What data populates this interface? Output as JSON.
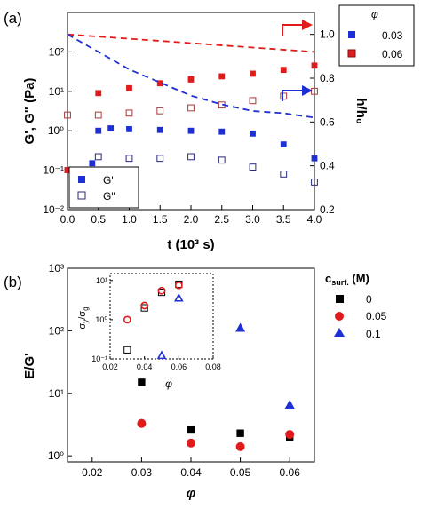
{
  "figure": {
    "panel_a_label": "(a)",
    "panel_b_label": "(b)"
  },
  "chart_data": [
    {
      "panel": "(a)",
      "type": "scatter",
      "xlabel": "t (10³ s)",
      "ylabel": "G', G\" (Pa)",
      "y2label": "h/h₀",
      "xlim": [
        0.0,
        4.0
      ],
      "ylim": [
        0.01,
        1000
      ],
      "yscale": "log",
      "y2lim": [
        0.2,
        1.1
      ],
      "xticks": [
        "0.0",
        "0.5",
        "1.0",
        "1.5",
        "2.0",
        "2.5",
        "3.0",
        "3.5",
        "4.0"
      ],
      "yticks": [
        "10⁻²",
        "10⁻¹",
        "10⁰",
        "10¹",
        "10²"
      ],
      "y2ticks": [
        "0.2",
        "0.4",
        "0.6",
        "0.8",
        "1.0"
      ],
      "legend_phi": {
        "title": "φ",
        "position": "top-right",
        "entries": [
          {
            "label": "0.03",
            "color": "#1f2fd6"
          },
          {
            "label": "0.06",
            "color": "#e01b1b"
          }
        ]
      },
      "legend_moduli": {
        "position": "bottom-left",
        "entries": [
          {
            "label": "G'",
            "marker": "filled-square"
          },
          {
            "label": "G\"",
            "marker": "open-square"
          }
        ]
      },
      "series": [
        {
          "color": "#1f2fd6",
          "marker": "filled-square",
          "x": [
            0.0,
            0.4,
            0.5,
            0.7,
            1.0,
            1.5,
            2.0,
            2.5,
            3.0,
            3.5,
            4.0
          ],
          "y": [
            0.1,
            0.15,
            1.0,
            1.15,
            1.1,
            1.05,
            1.0,
            0.95,
            0.85,
            0.45,
            0.2
          ]
        },
        {
          "color": "#1f2fd6",
          "marker": "open-square",
          "x": [
            0.5,
            1.0,
            1.5,
            2.0,
            2.5,
            3.0,
            3.5,
            4.0
          ],
          "y": [
            0.22,
            0.2,
            0.2,
            0.22,
            0.18,
            0.12,
            0.08,
            0.05
          ]
        },
        {
          "color": "#e01b1b",
          "marker": "filled-square",
          "x": [
            0.0,
            0.5,
            1.0,
            1.5,
            2.0,
            2.5,
            3.0,
            3.5,
            4.0
          ],
          "y": [
            0.1,
            9.0,
            12.0,
            16.0,
            20.0,
            24.0,
            28.0,
            35.0,
            45.0
          ]
        },
        {
          "color": "#e01b1b",
          "marker": "open-square",
          "x": [
            0.0,
            0.5,
            1.0,
            1.5,
            2.0,
            2.5,
            3.0,
            3.5,
            4.0
          ],
          "y": [
            2.5,
            2.5,
            2.8,
            3.2,
            3.8,
            4.5,
            5.8,
            7.5,
            10.0
          ]
        },
        {
          "color": "#e01b1b",
          "style": "dashed",
          "axis": "right",
          "x": [
            0.0,
            1.0,
            2.0,
            3.0,
            4.0
          ],
          "y": [
            1.0,
            0.98,
            0.96,
            0.94,
            0.92
          ]
        },
        {
          "color": "#1f2fd6",
          "style": "dashed",
          "axis": "right",
          "x": [
            0.0,
            0.5,
            1.0,
            1.5,
            2.0,
            2.5,
            3.0,
            3.5,
            4.0
          ],
          "y": [
            1.0,
            0.92,
            0.84,
            0.78,
            0.72,
            0.68,
            0.65,
            0.64,
            0.62
          ]
        }
      ]
    },
    {
      "panel": "(b)",
      "type": "scatter",
      "xlabel": "φ",
      "ylabel": "E/G'",
      "xlim": [
        0.015,
        0.065
      ],
      "ylim": [
        0.8,
        1000
      ],
      "yscale": "log",
      "xticks": [
        "0.02",
        "0.03",
        "0.04",
        "0.05",
        "0.06"
      ],
      "yticks": [
        "10⁰",
        "10¹",
        "10²",
        "10³"
      ],
      "legend": {
        "title": "c",
        "title_sub": "surf.",
        "title_unit": " (M)",
        "position": "top-right",
        "entries": [
          {
            "label": "0",
            "color": "#000000",
            "marker": "square"
          },
          {
            "label": "0.05",
            "color": "#e01b1b",
            "marker": "circle"
          },
          {
            "label": "0.1",
            "color": "#1f2fd6",
            "marker": "triangle"
          }
        ]
      },
      "series": [
        {
          "name": "0",
          "color": "#000000",
          "marker": "square",
          "x": [
            0.03,
            0.04,
            0.05,
            0.06
          ],
          "y": [
            15,
            2.6,
            2.3,
            2.0
          ]
        },
        {
          "name": "0.05",
          "color": "#e01b1b",
          "marker": "circle",
          "x": [
            0.03,
            0.04,
            0.05,
            0.06
          ],
          "y": [
            3.3,
            1.6,
            1.4,
            2.2
          ]
        },
        {
          "name": "0.1",
          "color": "#1f2fd6",
          "marker": "triangle",
          "x": [
            0.05,
            0.06
          ],
          "y": [
            110,
            6.5
          ]
        }
      ],
      "inset": {
        "type": "scatter",
        "xlabel": "φ",
        "ylabel_main": "σ",
        "ylabel_sub1": "y",
        "ylabel_mid": "/σ",
        "ylabel_sub2": "g",
        "xlim": [
          0.02,
          0.08
        ],
        "ylim": [
          0.1,
          15
        ],
        "yscale": "log",
        "xticks": [
          "0.02",
          "0.04",
          "0.06",
          "0.08"
        ],
        "yticks": [
          "10⁻¹",
          "10⁰",
          "10¹"
        ],
        "series": [
          {
            "color": "#000000",
            "marker": "open-square",
            "x": [
              0.03,
              0.04,
              0.05,
              0.06
            ],
            "y": [
              0.17,
              2.0,
              5.0,
              8.0
            ]
          },
          {
            "color": "#e01b1b",
            "marker": "open-circle",
            "x": [
              0.03,
              0.04,
              0.05,
              0.06
            ],
            "y": [
              1.0,
              2.3,
              5.5,
              7.5
            ]
          },
          {
            "color": "#1f2fd6",
            "marker": "open-triangle",
            "x": [
              0.05,
              0.06
            ],
            "y": [
              0.12,
              3.5
            ]
          }
        ]
      }
    }
  ]
}
